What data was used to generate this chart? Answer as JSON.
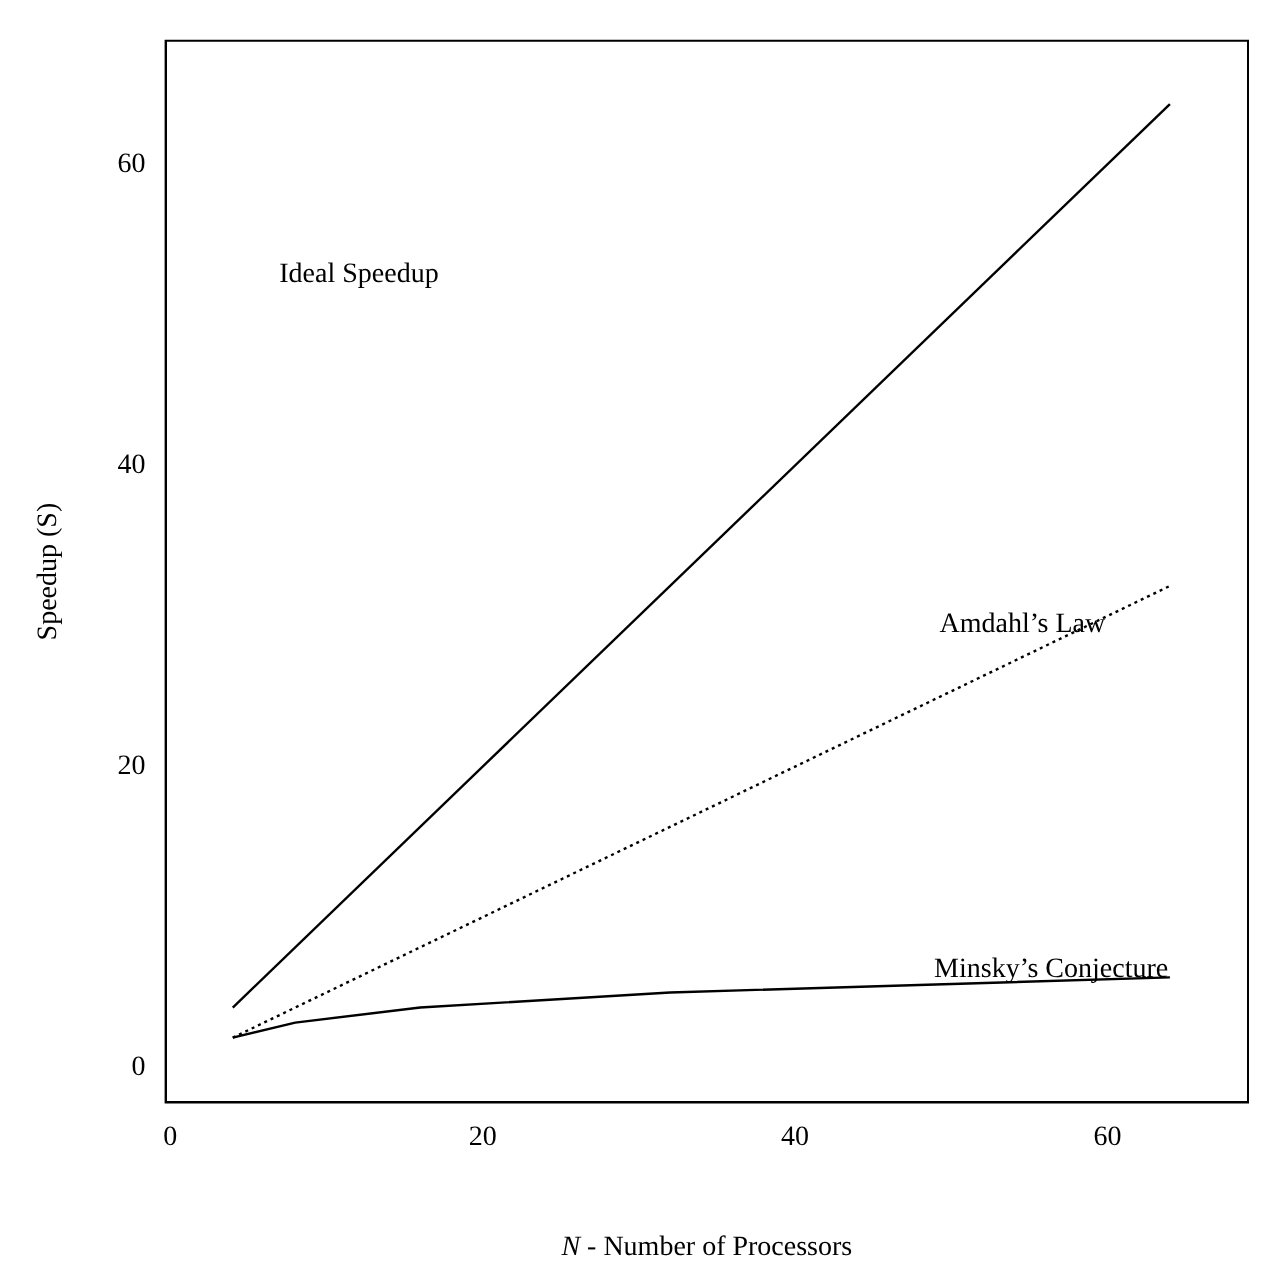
{
  "chart_data": {
    "type": "line",
    "xlabel": "N - Number of Processors",
    "ylabel": "Speedup (S)",
    "xlim": [
      -0.3,
      69
    ],
    "ylim": [
      -2.3,
      68.2
    ],
    "xticks": [
      0,
      20,
      40,
      60
    ],
    "yticks": [
      0,
      20,
      40,
      60
    ],
    "grid": false,
    "legend": false,
    "marker": "none",
    "series": [
      {
        "color": "#000000",
        "line_style": "solid",
        "x": [
          4,
          64
        ],
        "values": [
          4,
          64
        ]
      },
      {
        "name": "Amdahl’s Law",
        "color": "#000000",
        "line_style": "dotted",
        "x": [
          4,
          64
        ],
        "values": [
          2,
          32
        ]
      },
      {
        "name": "Minsky’s Conjecture",
        "color": "#000000",
        "line_style": "solid",
        "x": [
          4,
          8,
          16,
          32,
          64
        ],
        "values": [
          2,
          3,
          4,
          5,
          6
        ]
      }
    ],
    "annotations": [
      "Ideal Speedup"
    ]
  }
}
